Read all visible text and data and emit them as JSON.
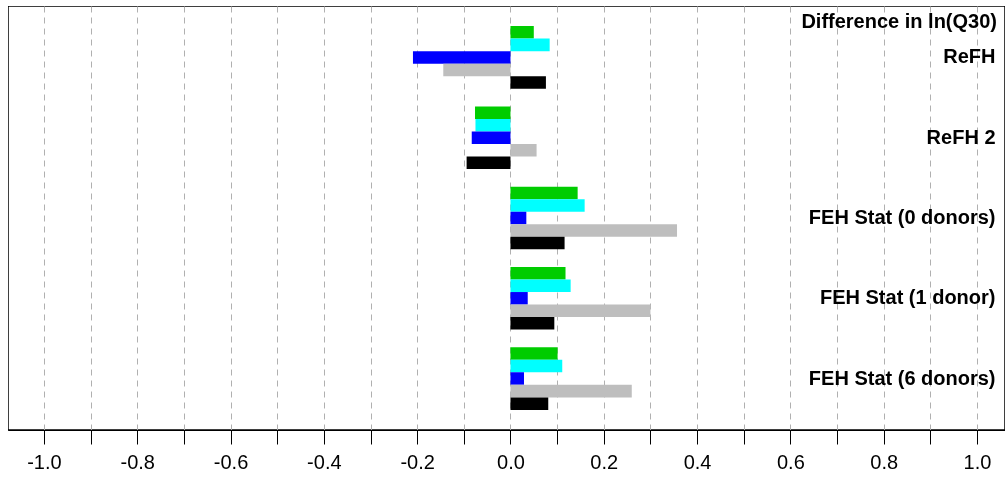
{
  "chart_data": {
    "type": "bar",
    "orientation": "horizontal",
    "title": "Difference in ln(Q30)",
    "categories": [
      "ReFH",
      "ReFH 2",
      "FEH Stat (0 donors)",
      "FEH Stat (1 donor)",
      "FEH Stat (6 donors)"
    ],
    "series": [
      {
        "color": "#00cc00",
        "values": [
          0.05,
          -0.076,
          0.144,
          0.118,
          0.101
        ]
      },
      {
        "color": "#00ffff",
        "values": [
          0.084,
          -0.075,
          0.159,
          0.129,
          0.111
        ]
      },
      {
        "color": "#0000ff",
        "values": [
          -0.209,
          -0.083,
          0.034,
          0.037,
          0.029
        ]
      },
      {
        "color": "#bebebe",
        "values": [
          -0.144,
          0.056,
          0.357,
          0.3,
          0.26
        ]
      },
      {
        "color": "#000000",
        "values": [
          0.076,
          -0.094,
          0.116,
          0.094,
          0.081
        ]
      }
    ],
    "xlim": [
      -1.077,
      1.06
    ],
    "xticks": [
      {
        "value": -1,
        "label": "-1.0"
      },
      {
        "value": -0.9,
        "label": null
      },
      -0.8,
      {
        "value": -0.7,
        "label": null
      },
      -0.6,
      {
        "value": -0.5,
        "label": null
      },
      -0.4,
      {
        "value": -0.3,
        "label": null
      },
      -0.2,
      {
        "value": -0.1,
        "label": null
      },
      {
        "value": 0,
        "label": "0.0"
      },
      {
        "value": 0.1,
        "label": null
      },
      0.2,
      {
        "value": 0.3,
        "label": null
      },
      0.4,
      {
        "value": 0.5,
        "label": null
      },
      0.6,
      {
        "value": 0.7,
        "label": null
      },
      0.8,
      {
        "value": 0.9,
        "label": null
      },
      {
        "value": 1,
        "label": "1.0"
      }
    ],
    "grid": "x",
    "legend": false
  }
}
